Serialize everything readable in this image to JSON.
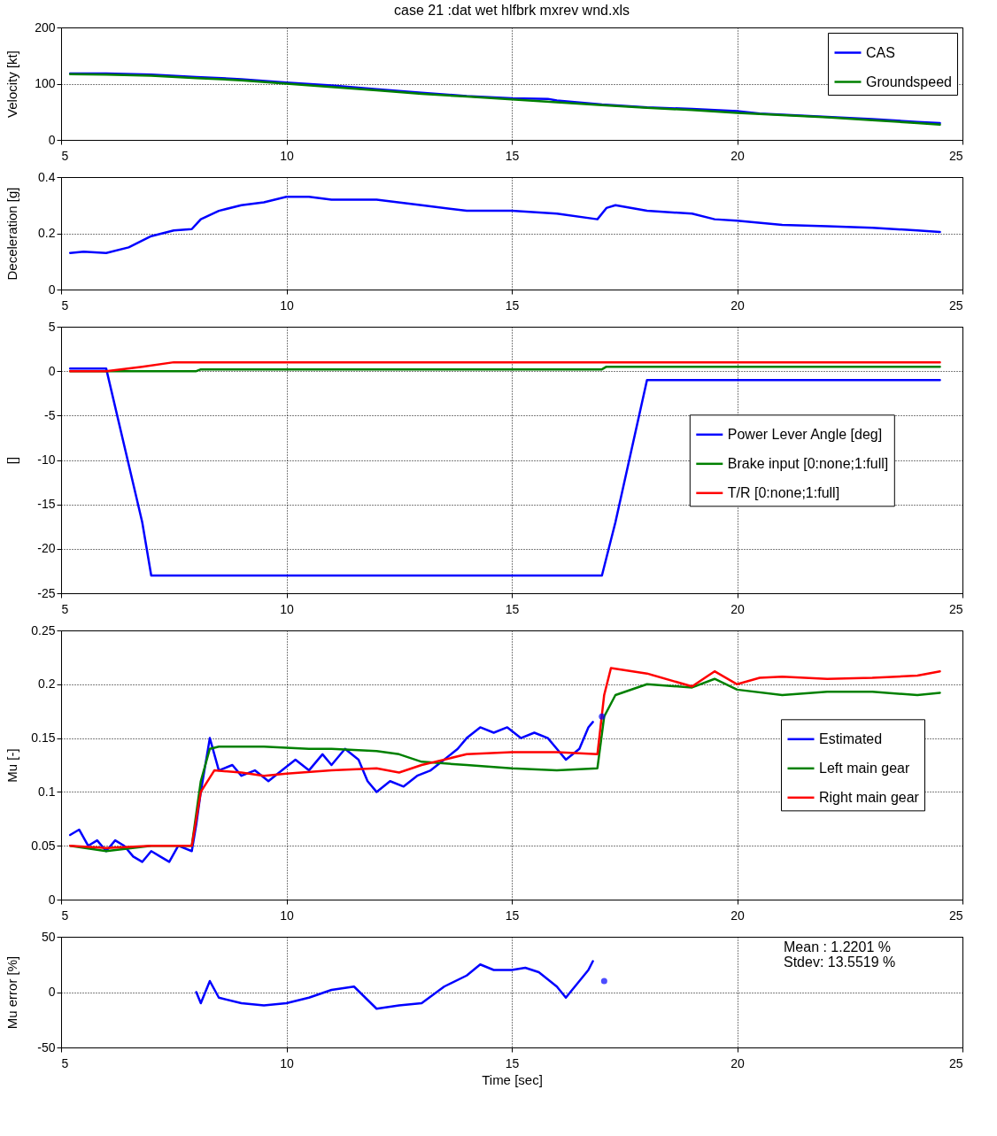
{
  "chart_data": [
    {
      "type": "line",
      "title": "case 21 :dat wet hlfbrk mxrev wnd.xls",
      "ylabel": "Velocity [kt]",
      "xlim": [
        5,
        25
      ],
      "xticks": [
        5,
        10,
        15,
        20,
        25
      ],
      "ylim": [
        0,
        200
      ],
      "yticks": [
        0,
        100,
        200
      ],
      "grid": true,
      "legend": "top right",
      "series": [
        {
          "name": "CAS",
          "color": "#0000ff",
          "x": [
            5.2,
            6,
            7,
            8,
            9,
            10,
            11,
            12,
            13,
            14,
            15,
            15.8,
            16,
            17,
            18,
            19,
            20,
            20.5,
            21,
            22,
            23,
            24,
            24.5
          ],
          "values": [
            118,
            118,
            116,
            112,
            108,
            102,
            97,
            90,
            84,
            78,
            74,
            73,
            70,
            63,
            58,
            55,
            51,
            47,
            45,
            41,
            37,
            32,
            30
          ]
        },
        {
          "name": "Groundspeed",
          "color": "#008000",
          "x": [
            5.2,
            6,
            7,
            8,
            9,
            10,
            11,
            12,
            13,
            14,
            15,
            16,
            17,
            18,
            19,
            20,
            21,
            22,
            23,
            24,
            24.5
          ],
          "values": [
            117,
            116,
            114,
            110,
            106,
            100,
            94,
            88,
            82,
            77,
            72,
            67,
            62,
            57,
            53,
            48,
            44,
            40,
            35,
            30,
            27
          ]
        }
      ]
    },
    {
      "type": "line",
      "ylabel": "Deceleration [g]",
      "xlim": [
        5,
        25
      ],
      "xticks": [
        5,
        10,
        15,
        20,
        25
      ],
      "ylim": [
        0,
        0.4
      ],
      "yticks": [
        0,
        0.2,
        0.4
      ],
      "grid": true,
      "series": [
        {
          "color": "#0000ff",
          "x": [
            5.2,
            5.5,
            6,
            6.5,
            7,
            7.5,
            7.9,
            8.1,
            8.5,
            9,
            9.5,
            10,
            10.5,
            11,
            12,
            13,
            14,
            15,
            16,
            16.9,
            17.1,
            17.3,
            18,
            19,
            19.5,
            20,
            21,
            22,
            23,
            24,
            24.5
          ],
          "values": [
            0.13,
            0.135,
            0.13,
            0.15,
            0.19,
            0.21,
            0.215,
            0.25,
            0.28,
            0.3,
            0.31,
            0.33,
            0.33,
            0.32,
            0.32,
            0.3,
            0.28,
            0.28,
            0.27,
            0.25,
            0.29,
            0.3,
            0.28,
            0.27,
            0.25,
            0.245,
            0.23,
            0.225,
            0.22,
            0.21,
            0.205
          ]
        }
      ]
    },
    {
      "type": "line",
      "ylabel": "[]",
      "xlim": [
        5,
        25
      ],
      "xticks": [
        5,
        10,
        15,
        20,
        25
      ],
      "ylim": [
        -25,
        5
      ],
      "yticks": [
        -25,
        -20,
        -15,
        -10,
        -5,
        0,
        5
      ],
      "grid": true,
      "legend": "right",
      "series": [
        {
          "name": "Power Lever Angle [deg]",
          "color": "#0000ff",
          "x": [
            5.2,
            6,
            6.8,
            7,
            17,
            17.3,
            18,
            24.5
          ],
          "values": [
            0.3,
            0.3,
            -17,
            -23,
            -23,
            -17,
            -1,
            -1
          ]
        },
        {
          "name": "Brake input [0:none;1:full]",
          "color": "#008000",
          "x": [
            5.2,
            8,
            8.1,
            17,
            17.1,
            24.5
          ],
          "values": [
            0,
            0,
            0.2,
            0.2,
            0.5,
            0.5
          ]
        },
        {
          "name": "T/R [0:none;1:full]",
          "color": "#ff0000",
          "x": [
            5.2,
            6,
            6.8,
            7.5,
            24.5
          ],
          "values": [
            0,
            0,
            0.5,
            1,
            1
          ]
        }
      ]
    },
    {
      "type": "line",
      "ylabel": "Mu [-]",
      "xlim": [
        5,
        25
      ],
      "xticks": [
        5,
        10,
        15,
        20,
        25
      ],
      "ylim": [
        0,
        0.25
      ],
      "yticks": [
        0,
        0.05,
        0.1,
        0.15,
        0.2,
        0.25
      ],
      "grid": true,
      "legend": "right",
      "series": [
        {
          "name": "Estimated",
          "color": "#0000ff",
          "x": [
            5.2,
            5.4,
            5.6,
            5.8,
            6,
            6.2,
            6.4,
            6.6,
            6.8,
            7,
            7.2,
            7.4,
            7.6,
            7.9,
            8,
            8.1,
            8.3,
            8.5,
            8.8,
            9,
            9.3,
            9.6,
            9.9,
            10.2,
            10.5,
            10.8,
            11,
            11.3,
            11.6,
            11.8,
            12,
            12.3,
            12.6,
            12.9,
            13.2,
            13.5,
            13.8,
            14,
            14.3,
            14.6,
            14.9,
            15.2,
            15.5,
            15.8,
            16,
            16.2,
            16.5,
            16.7,
            16.8
          ],
          "values": [
            0.06,
            0.065,
            0.05,
            0.055,
            0.045,
            0.055,
            0.05,
            0.04,
            0.035,
            0.045,
            0.04,
            0.035,
            0.05,
            0.045,
            0.07,
            0.1,
            0.15,
            0.12,
            0.125,
            0.115,
            0.12,
            0.11,
            0.12,
            0.13,
            0.12,
            0.135,
            0.125,
            0.14,
            0.13,
            0.11,
            0.1,
            0.11,
            0.105,
            0.115,
            0.12,
            0.13,
            0.14,
            0.15,
            0.16,
            0.155,
            0.16,
            0.15,
            0.155,
            0.15,
            0.14,
            0.13,
            0.14,
            0.16,
            0.165
          ]
        },
        {
          "name": "Left main gear",
          "color": "#008000",
          "x": [
            5.2,
            6,
            7,
            7.9,
            8.1,
            8.3,
            8.5,
            9.5,
            10.5,
            11,
            12,
            12.5,
            13,
            14,
            15,
            16,
            16.9,
            17.05,
            17.3,
            18,
            19,
            19.5,
            20,
            21,
            22,
            23,
            24,
            24.5
          ],
          "values": [
            0.05,
            0.045,
            0.05,
            0.05,
            0.11,
            0.14,
            0.142,
            0.142,
            0.14,
            0.14,
            0.138,
            0.135,
            0.128,
            0.125,
            0.122,
            0.12,
            0.122,
            0.17,
            0.19,
            0.2,
            0.197,
            0.205,
            0.195,
            0.19,
            0.193,
            0.193,
            0.19,
            0.192
          ]
        },
        {
          "name": "Right main gear",
          "color": "#ff0000",
          "x": [
            5.2,
            6,
            7,
            7.9,
            8.1,
            8.4,
            9,
            9.5,
            10,
            11,
            12,
            12.5,
            13,
            14,
            15,
            16,
            16.9,
            17.05,
            17.2,
            18,
            19,
            19.5,
            20,
            20.5,
            21,
            22,
            23,
            24,
            24.5
          ],
          "values": [
            0.05,
            0.048,
            0.05,
            0.05,
            0.1,
            0.12,
            0.118,
            0.115,
            0.117,
            0.12,
            0.122,
            0.118,
            0.125,
            0.135,
            0.137,
            0.137,
            0.135,
            0.19,
            0.215,
            0.21,
            0.198,
            0.212,
            0.2,
            0.206,
            0.207,
            0.205,
            0.206,
            0.208,
            0.212
          ]
        },
        {
          "type": "scatter",
          "color": "#0000ff",
          "x": [
            17
          ],
          "values": [
            0.17
          ]
        }
      ]
    },
    {
      "type": "line",
      "xlabel": "Time [sec]",
      "ylabel": "Mu error [%]",
      "xlim": [
        5,
        25
      ],
      "xticks": [
        5,
        10,
        15,
        20,
        25
      ],
      "ylim": [
        -50,
        50
      ],
      "yticks": [
        -50,
        0,
        50
      ],
      "grid": true,
      "annotations": [
        "Mean : 1.2201 %",
        "Stdev: 13.5519 %"
      ],
      "series": [
        {
          "color": "#0000ff",
          "x": [
            8,
            8.1,
            8.3,
            8.5,
            9,
            9.5,
            10,
            10.5,
            11,
            11.5,
            12,
            12.5,
            13,
            13.5,
            14,
            14.3,
            14.6,
            15,
            15.3,
            15.6,
            16,
            16.2,
            16.5,
            16.7,
            16.8
          ],
          "values": [
            0,
            -10,
            10,
            -5,
            -10,
            -12,
            -10,
            -5,
            2,
            5,
            -15,
            -12,
            -10,
            5,
            15,
            25,
            20,
            20,
            22,
            18,
            5,
            -5,
            10,
            20,
            28
          ]
        },
        {
          "type": "scatter",
          "color": "#0000ff",
          "x": [
            17.05
          ],
          "values": [
            10
          ]
        }
      ]
    }
  ]
}
